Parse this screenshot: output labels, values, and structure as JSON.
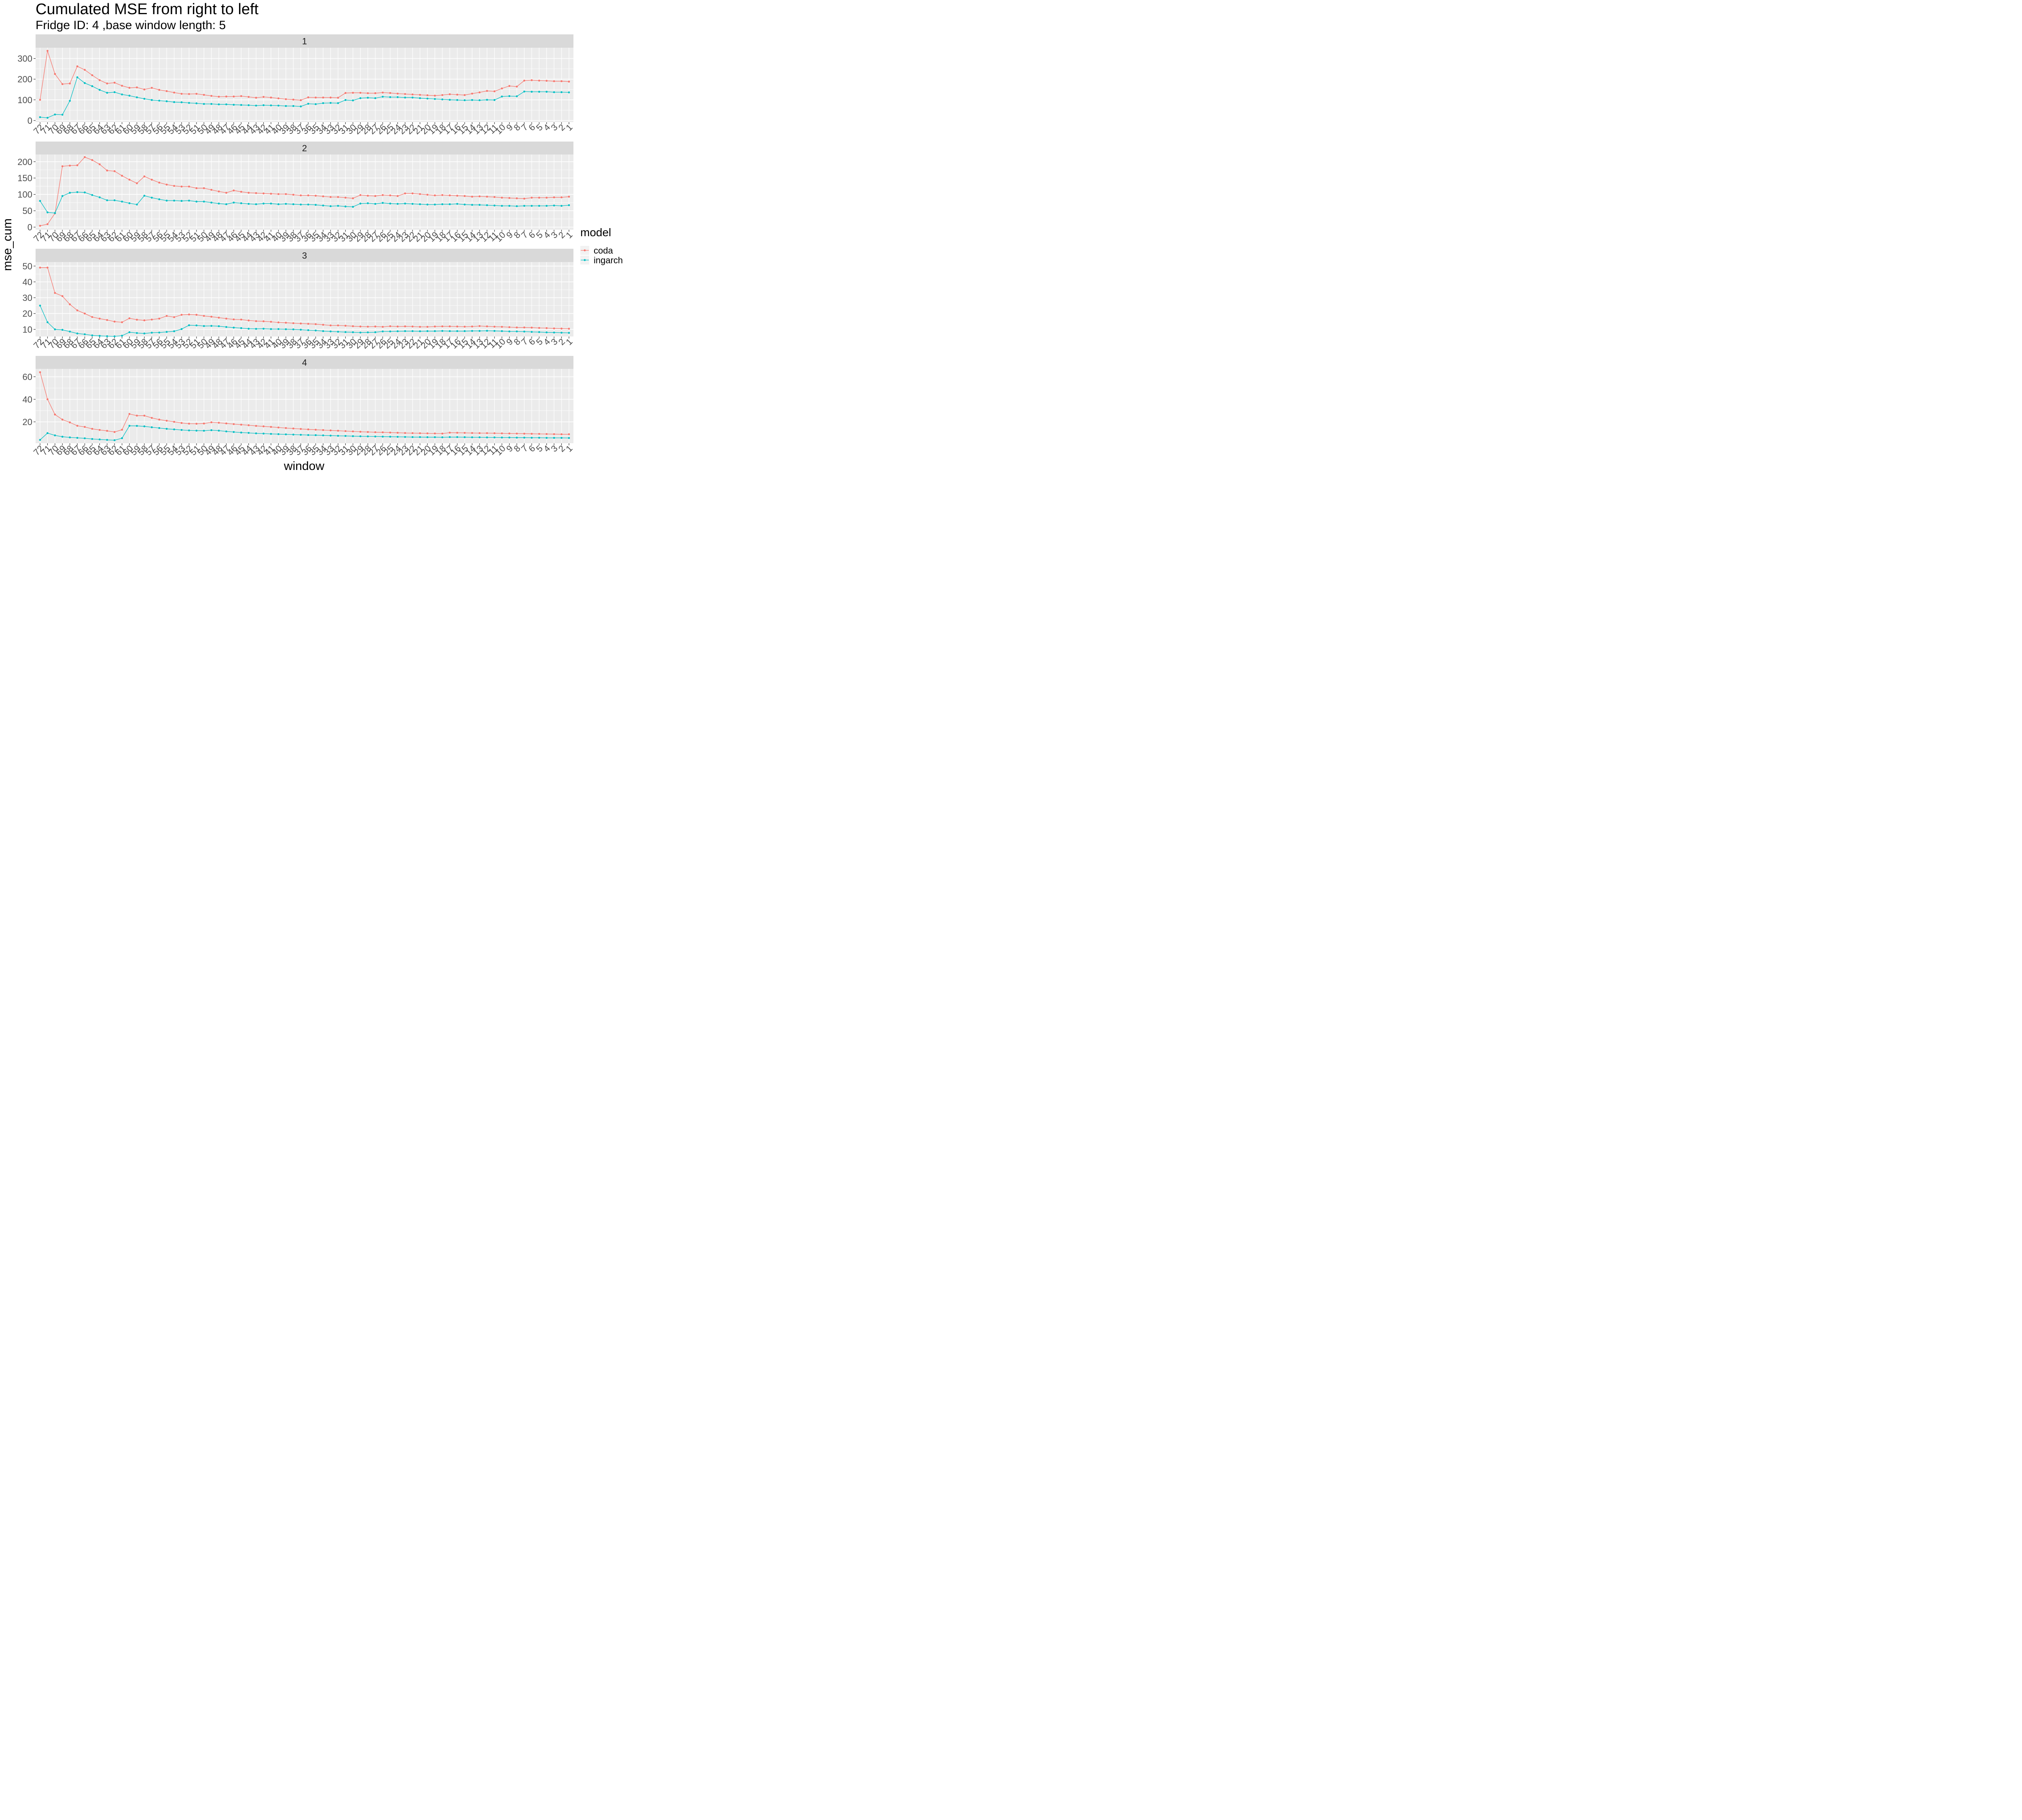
{
  "chart_data": {
    "type": "line",
    "title": "Cumulated MSE from right to left",
    "subtitle": "Fridge ID: 4 ,base window length: 5",
    "xlabel": "window",
    "ylabel": "mse_cum",
    "legend": {
      "title": "model",
      "position": "right",
      "entries": [
        {
          "name": "coda",
          "color": "#F8766D"
        },
        {
          "name": "ingarch",
          "color": "#00BFC4"
        }
      ]
    },
    "x": [
      72,
      71,
      70,
      69,
      68,
      67,
      66,
      65,
      64,
      63,
      62,
      61,
      60,
      59,
      58,
      57,
      56,
      55,
      54,
      53,
      52,
      51,
      50,
      49,
      48,
      47,
      46,
      45,
      44,
      43,
      42,
      41,
      40,
      39,
      38,
      37,
      36,
      35,
      34,
      33,
      32,
      31,
      30,
      29,
      28,
      27,
      26,
      25,
      24,
      23,
      22,
      21,
      20,
      19,
      18,
      17,
      16,
      15,
      14,
      13,
      12,
      11,
      10,
      9,
      8,
      7,
      6,
      5,
      4,
      3,
      2,
      1
    ],
    "panels": [
      {
        "strip": "1",
        "ylim": [
          -8,
          352
        ],
        "yticks": [
          0,
          100,
          200,
          300
        ],
        "series": [
          {
            "name": "coda",
            "values": [
              100,
              337,
              225,
              176,
              179,
              262,
              245,
              219,
              195,
              179,
              183,
              168,
              158,
              160,
              150,
              158,
              148,
              142,
              135,
              129,
              128,
              129,
              124,
              119,
              115,
              116,
              116,
              118,
              114,
              110,
              114,
              111,
              107,
              103,
              101,
              98,
              112,
              111,
              111,
              111,
              110,
              133,
              134,
              134,
              132,
              132,
              135,
              133,
              130,
              128,
              126,
              124,
              122,
              120,
              123,
              127,
              125,
              123,
              130,
              136,
              143,
              141,
              155,
              167,
              164,
              193,
              195,
              193,
              192,
              190,
              190,
              188
            ]
          },
          {
            "name": "ingarch",
            "values": [
              16,
              13,
              29,
              28,
              95,
              209,
              181,
              166,
              148,
              134,
              137,
              126,
              120,
              112,
              105,
              99,
              96,
              93,
              89,
              88,
              85,
              83,
              80,
              80,
              78,
              78,
              76,
              75,
              74,
              72,
              74,
              73,
              72,
              70,
              70,
              68,
              81,
              79,
              84,
              85,
              84,
              99,
              97,
              108,
              110,
              108,
              115,
              113,
              113,
              111,
              111,
              108,
              106,
              104,
              102,
              100,
              99,
              98,
              99,
              98,
              100,
              99,
              116,
              118,
              117,
              140,
              139,
              139,
              139,
              137,
              137,
              136
            ]
          }
        ]
      },
      {
        "strip": "2",
        "ylim": [
          -8,
          222
        ],
        "yticks": [
          0,
          50,
          100,
          150,
          200
        ],
        "series": [
          {
            "name": "coda",
            "values": [
              4,
              9,
              42,
              186,
              188,
              189,
              214,
              205,
              192,
              173,
              171,
              157,
              145,
              134,
              155,
              145,
              136,
              130,
              126,
              124,
              124,
              119,
              119,
              114,
              109,
              105,
              112,
              108,
              105,
              104,
              103,
              102,
              101,
              101,
              99,
              97,
              97,
              96,
              94,
              92,
              92,
              90,
              88,
              98,
              96,
              95,
              98,
              97,
              95,
              103,
              103,
              101,
              99,
              97,
              98,
              97,
              96,
              95,
              93,
              94,
              93,
              92,
              90,
              89,
              88,
              87,
              90,
              90,
              90,
              91,
              91,
              93
            ]
          },
          {
            "name": "ingarch",
            "values": [
              80,
              45,
              43,
              95,
              105,
              107,
              106,
              98,
              91,
              82,
              82,
              78,
              73,
              69,
              96,
              90,
              85,
              81,
              81,
              80,
              81,
              78,
              78,
              75,
              72,
              70,
              75,
              73,
              71,
              70,
              72,
              72,
              70,
              71,
              70,
              69,
              69,
              68,
              66,
              64,
              65,
              63,
              62,
              72,
              73,
              71,
              74,
              72,
              71,
              72,
              71,
              70,
              69,
              69,
              70,
              70,
              71,
              69,
              68,
              68,
              67,
              66,
              65,
              65,
              64,
              65,
              65,
              65,
              65,
              66,
              65,
              67
            ]
          }
        ]
      },
      {
        "strip": "3",
        "ylim": [
          5.5,
          52.5
        ],
        "yticks": [
          10,
          20,
          30,
          40,
          50
        ],
        "series": [
          {
            "name": "coda",
            "values": [
              49,
              49,
              33,
              31,
              25.8,
              22,
              20,
              17.8,
              16.8,
              15.9,
              14.9,
              14.5,
              17,
              16.1,
              15.7,
              16.2,
              16.8,
              18.5,
              17.7,
              19.2,
              19.4,
              19.2,
              18.5,
              18,
              17.4,
              16.8,
              16.3,
              16.2,
              15.6,
              15.2,
              15.1,
              14.8,
              14.4,
              14.2,
              13.9,
              13.7,
              13.5,
              13.3,
              12.9,
              12.5,
              12.5,
              12.3,
              12,
              11.8,
              11.7,
              11.8,
              11.6,
              12,
              11.8,
              11.9,
              11.8,
              11.6,
              11.6,
              11.8,
              11.9,
              11.9,
              11.8,
              11.7,
              11.8,
              12.1,
              11.9,
              11.7,
              11.6,
              11.4,
              11.2,
              11.2,
              11.1,
              10.9,
              10.8,
              10.6,
              10.5,
              10.4
            ]
          },
          {
            "name": "ingarch",
            "values": [
              25,
              14.5,
              10,
              9.7,
              8.6,
              7.4,
              6.9,
              6.2,
              5.9,
              5.7,
              5.6,
              6,
              8.2,
              7.7,
              7.4,
              7.9,
              8,
              8.4,
              8.8,
              10.2,
              12.6,
              12.5,
              12.1,
              12.2,
              12,
              11.5,
              11.1,
              10.8,
              10.4,
              10.3,
              10.4,
              10.2,
              10.2,
              10.1,
              10,
              9.8,
              9.5,
              9.3,
              8.9,
              8.7,
              8.5,
              8.3,
              8.2,
              8,
              8.1,
              8.2,
              8.7,
              8.7,
              8.8,
              8.9,
              8.9,
              8.8,
              8.9,
              8.9,
              9,
              8.9,
              8.9,
              8.9,
              9,
              9,
              9.1,
              9,
              8.9,
              8.7,
              8.7,
              8.6,
              8.4,
              8.3,
              8.1,
              8,
              7.9,
              7.8
            ]
          }
        ]
      },
      {
        "strip": "4",
        "ylim": [
          1,
          67
        ],
        "yticks": [
          20,
          40,
          60
        ],
        "series": [
          {
            "name": "coda",
            "values": [
              64,
              40,
              26.5,
              22,
              19.5,
              16.5,
              15.5,
              13.8,
              12.8,
              12,
              11,
              13,
              27,
              25.5,
              25.5,
              23.5,
              22,
              21,
              20,
              19,
              18.4,
              18.3,
              18.5,
              19.6,
              19.2,
              18.6,
              18,
              17.5,
              17,
              16.4,
              16,
              15.5,
              15,
              14.5,
              14.1,
              13.7,
              13.3,
              13,
              12.7,
              12.4,
              12.1,
              11.8,
              11.5,
              11.2,
              11,
              10.8,
              10.7,
              10.5,
              10.3,
              10.1,
              10,
              9.9,
              9.8,
              9.7,
              9.6,
              10.4,
              10.3,
              10.2,
              10.1,
              10,
              10,
              9.9,
              9.8,
              9.7,
              9.6,
              9.5,
              9.4,
              9.3,
              9.2,
              9.1,
              9,
              9
            ]
          },
          {
            "name": "ingarch",
            "values": [
              4,
              10,
              8,
              6.8,
              6.2,
              5.8,
              5.4,
              4.8,
              4.4,
              4,
              3.7,
              5.5,
              16.5,
              16.4,
              16,
              15.2,
              14.5,
              13.8,
              13.3,
              12.8,
              12.4,
              12.2,
              12.1,
              12.6,
              12.2,
              11.5,
              11,
              10.5,
              10.2,
              9.8,
              9.6,
              9.3,
              9.1,
              8.9,
              8.7,
              8.5,
              8.3,
              8.2,
              8,
              7.8,
              7.6,
              7.5,
              7.3,
              7.2,
              7.1,
              7,
              6.9,
              6.8,
              6.7,
              6.6,
              6.5,
              6.5,
              6.4,
              6.4,
              6.3,
              6.5,
              6.5,
              6.4,
              6.3,
              6.3,
              6.2,
              6.2,
              6.1,
              6.1,
              6,
              6,
              5.9,
              5.9,
              5.8,
              5.8,
              5.8,
              5.7
            ]
          }
        ]
      }
    ]
  }
}
